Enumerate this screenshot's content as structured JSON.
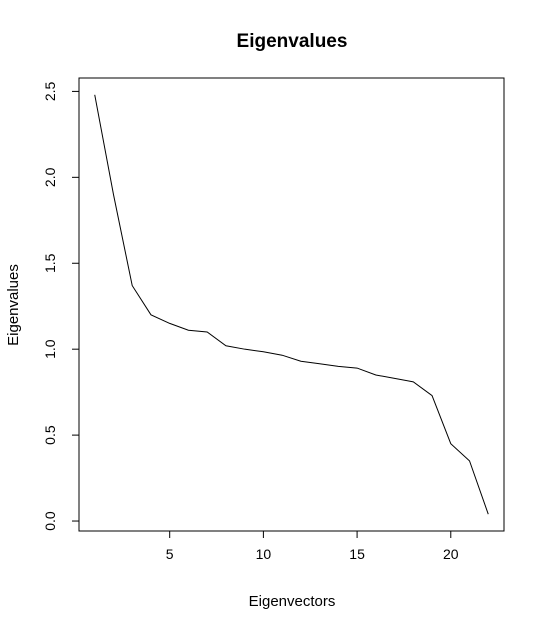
{
  "chart_data": {
    "type": "line",
    "title": "Eigenvalues",
    "xlabel": "Eigenvectors",
    "ylabel": "Eigenvalues",
    "x": [
      1,
      2,
      3,
      4,
      5,
      6,
      7,
      8,
      9,
      10,
      11,
      12,
      13,
      14,
      15,
      16,
      17,
      18,
      19,
      20,
      21,
      22
    ],
    "series": [
      {
        "values": [
          2.48,
          1.9,
          1.37,
          1.2,
          1.15,
          1.11,
          1.1,
          1.02,
          1.0,
          0.985,
          0.965,
          0.93,
          0.915,
          0.9,
          0.89,
          0.85,
          0.83,
          0.81,
          0.73,
          0.45,
          0.35,
          0.04
        ],
        "color": "#000000"
      }
    ],
    "xlim": [
      0.16,
      22.84
    ],
    "ylim": [
      -0.058,
      2.578
    ],
    "xticks": [
      5,
      10,
      15,
      20
    ],
    "xtick_labels": [
      "5",
      "10",
      "15",
      "20"
    ],
    "yticks": [
      0.0,
      0.5,
      1.0,
      1.5,
      2.0,
      2.5
    ],
    "ytick_labels": [
      "0.0",
      "0.5",
      "1.0",
      "1.5",
      "2.0",
      "2.5"
    ],
    "grid": false,
    "legend": "none"
  }
}
